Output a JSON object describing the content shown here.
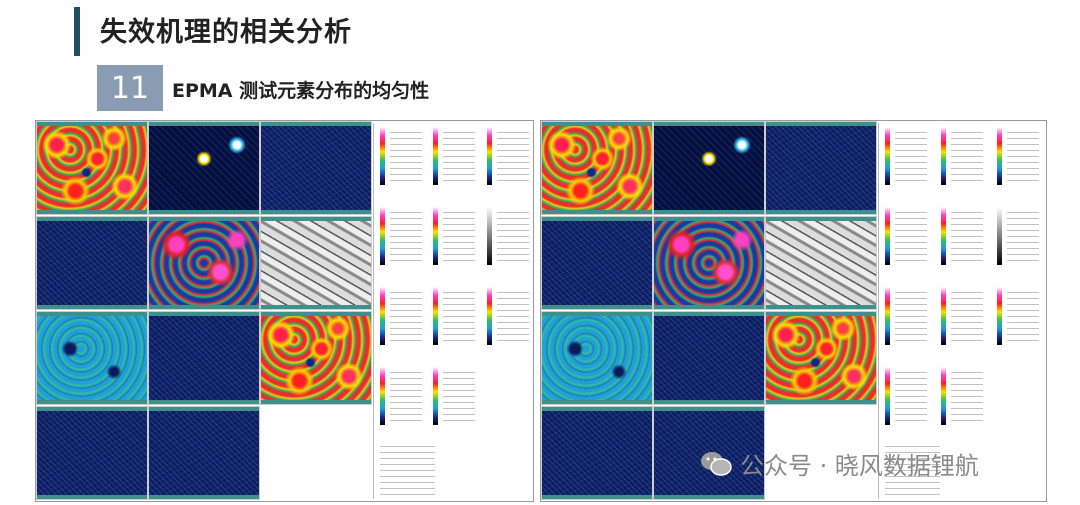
{
  "header": {
    "title": "失效机理的相关分析"
  },
  "section": {
    "number": "11",
    "title": "EPMA 测试元素分布的均匀性"
  },
  "watermark": "公众号 · 晓风数据锂航"
}
